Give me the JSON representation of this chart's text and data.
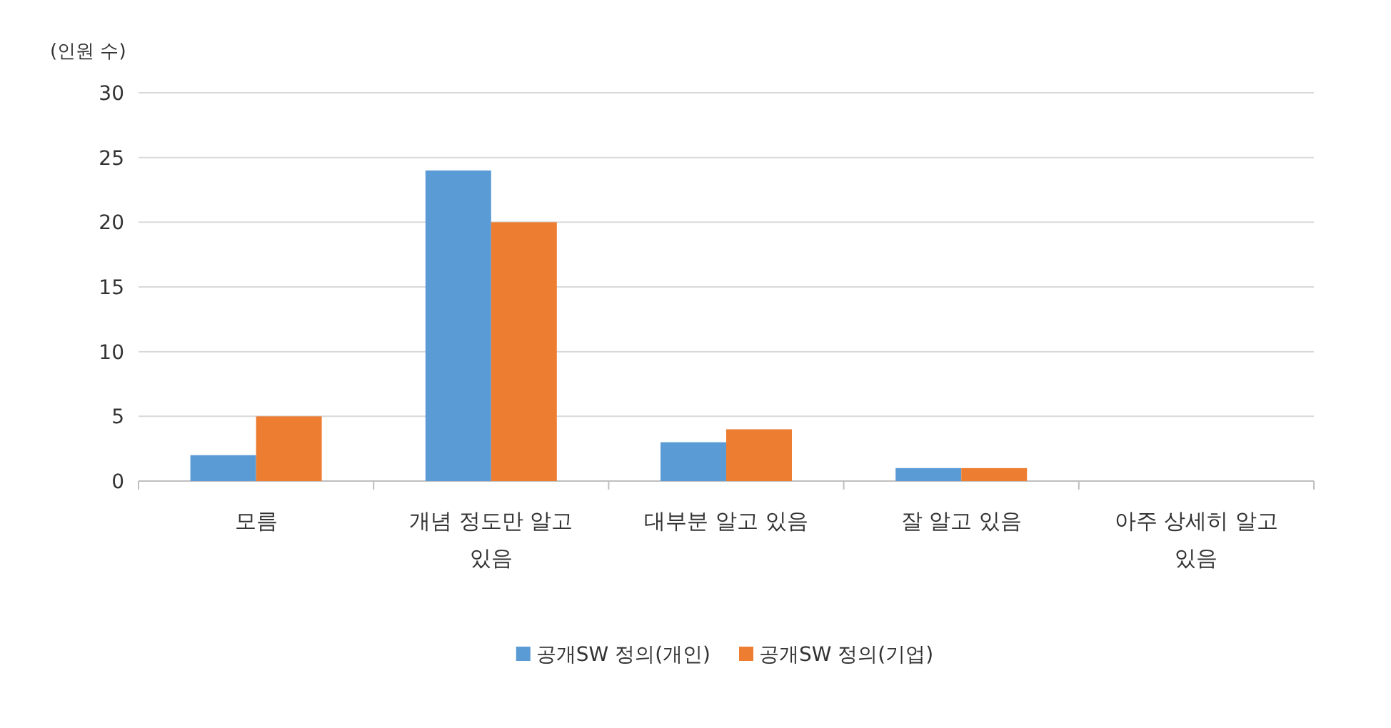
{
  "chart_data": {
    "type": "bar",
    "ylabel": "(인원 수)",
    "categories": [
      "모름",
      "개념 정도만 알고 있음",
      "대부분 알고 있음",
      "잘 알고 있음",
      "아주 상세히 알고 있음"
    ],
    "series": [
      {
        "name": "공개SW 정의(개인)",
        "color": "#5b9bd5",
        "values": [
          2,
          24,
          3,
          1,
          0
        ]
      },
      {
        "name": "공개SW 정의(기업)",
        "color": "#ed7d31",
        "values": [
          5,
          20,
          4,
          1,
          0
        ]
      }
    ],
    "ylim": [
      0,
      30
    ],
    "yticks": [
      0,
      5,
      10,
      15,
      20,
      25,
      30
    ],
    "grid": "y",
    "legend": "bottom"
  }
}
